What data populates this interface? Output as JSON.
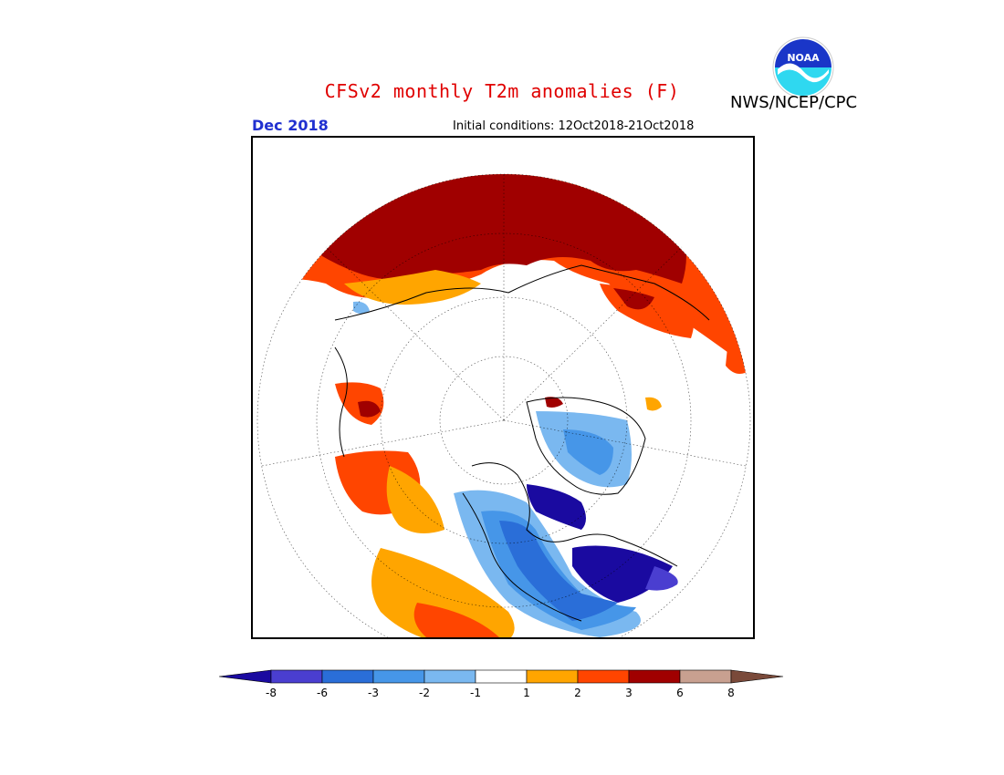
{
  "title": "CFSv2 monthly T2m anomalies (F)",
  "agency": "NWS/NCEP/CPC",
  "logo_text": "NOAA",
  "month_label": "Dec 2018",
  "initial_conditions": "Initial conditions: 12Oct2018-21Oct2018",
  "colors": {
    "title": "#e00000",
    "month": "#2030d0",
    "lt_neg8": "#1a0aa0",
    "neg8_neg6": "#4a3ed0",
    "neg6_neg3": "#2a6ed8",
    "neg3_neg2": "#4696e8",
    "neg2_neg1": "#7ab8f0",
    "neutral": "#ffffff",
    "pos1_pos2": "#ffa500",
    "pos2_pos3": "#ff4500",
    "pos3_pos6": "#a00000",
    "pos6_pos8": "#c8a090",
    "gt_pos8": "#7a4a3a"
  },
  "colorbar": {
    "ticks": [
      "-8",
      "-6",
      "-3",
      "-2",
      "-1",
      "1",
      "2",
      "3",
      "6",
      "8"
    ],
    "bins": [
      {
        "label": "< -8",
        "color": "#1a0aa0"
      },
      {
        "label": "-8 to -6",
        "color": "#4a3ed0"
      },
      {
        "label": "-6 to -3",
        "color": "#2a6ed8"
      },
      {
        "label": "-3 to -2",
        "color": "#4696e8"
      },
      {
        "label": "-2 to -1",
        "color": "#7ab8f0"
      },
      {
        "label": "-1 to 1",
        "color": "#ffffff"
      },
      {
        "label": "1 to 2",
        "color": "#ffa500"
      },
      {
        "label": "2 to 3",
        "color": "#ff4500"
      },
      {
        "label": "3 to 6",
        "color": "#a00000"
      },
      {
        "label": "6 to 8",
        "color": "#c8a090"
      },
      {
        "label": "> 8",
        "color": "#7a4a3a"
      }
    ]
  },
  "map": {
    "projection": "north polar stereographic",
    "variable": "2 m temperature anomaly",
    "units": "F",
    "regions": [
      {
        "name": "Russia / northern Eurasia",
        "anomaly_bin": "3 to 6"
      },
      {
        "name": "Europe",
        "anomaly_bin": "2 to 3"
      },
      {
        "name": "Alaska",
        "anomaly_bin": "2 to 3"
      },
      {
        "name": "Western Canada / US Pacific Northwest",
        "anomaly_bin": "1 to 2"
      },
      {
        "name": "Hudson Bay / Nunavut",
        "anomaly_bin": "< -8"
      },
      {
        "name": "Eastern Canada",
        "anomaly_bin": "-6 to -3"
      },
      {
        "name": "Greenland",
        "anomaly_bin": "-3 to -2"
      },
      {
        "name": "Arctic Ocean",
        "anomaly_bin": "-1 to 1"
      }
    ]
  }
}
